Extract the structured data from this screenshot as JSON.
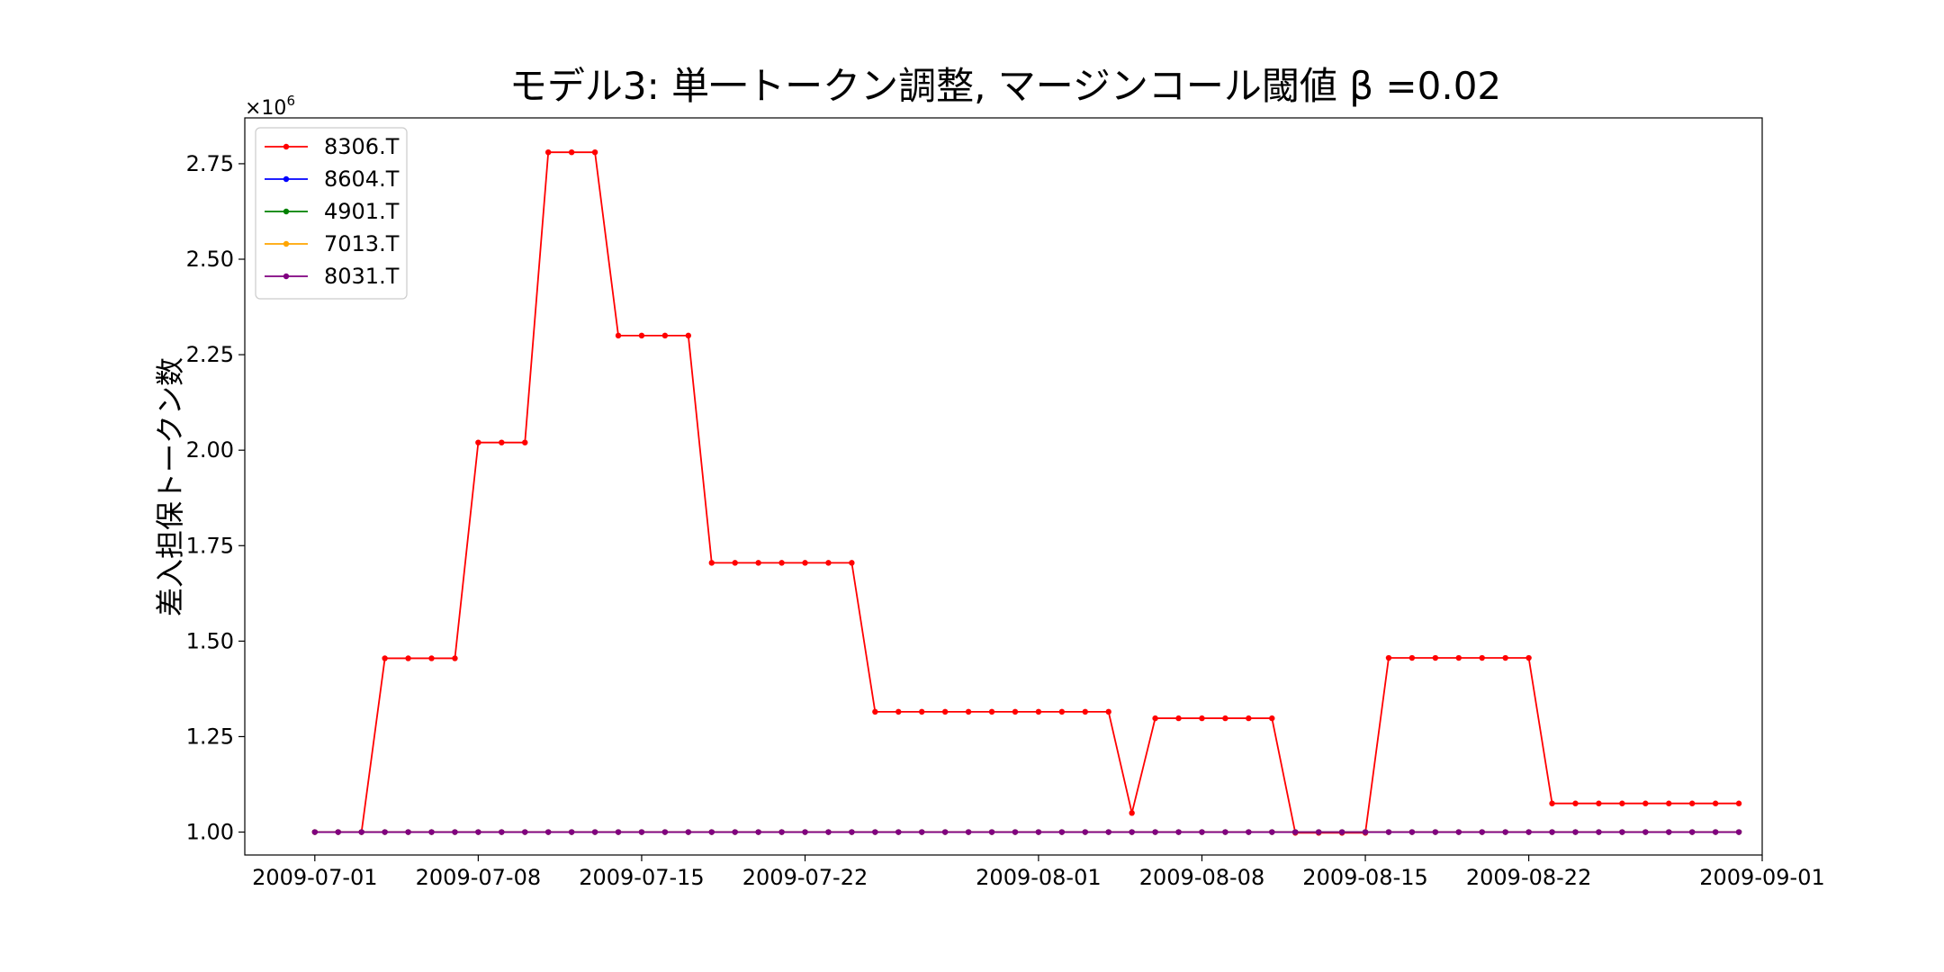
{
  "chart_data": {
    "type": "line",
    "title": "モデル3: 単一トークン調整, マージンコール閾値 β =0.02",
    "xlabel": "",
    "ylabel": "差入担保トークン数",
    "y_multiplier_base": "×10",
    "y_multiplier_exp": "6",
    "x_start_date": "2009-07-01",
    "xlim": [
      "2009-06-28",
      "2009-09-01"
    ],
    "ylim": [
      0.94,
      2.87
    ],
    "x_ticks": [
      "2009-07-01",
      "2009-07-08",
      "2009-07-15",
      "2009-07-22",
      "2009-08-01",
      "2009-08-08",
      "2009-08-15",
      "2009-08-22",
      "2009-09-01"
    ],
    "y_ticks": [
      1.0,
      1.25,
      1.5,
      1.75,
      2.0,
      2.25,
      2.5,
      2.75
    ],
    "y_tick_labels": [
      "1.00",
      "1.25",
      "1.50",
      "1.75",
      "2.00",
      "2.25",
      "2.50",
      "2.75"
    ],
    "legend_position": "upper-left",
    "grid": false,
    "series": [
      {
        "name": "8306.T",
        "color": "#ff0000",
        "values": [
          1.0,
          1.0,
          1.0,
          1.455,
          1.455,
          1.455,
          1.455,
          2.02,
          2.02,
          2.02,
          2.78,
          2.78,
          2.78,
          2.3,
          2.3,
          2.3,
          2.3,
          1.705,
          1.705,
          1.705,
          1.705,
          1.705,
          1.705,
          1.705,
          1.315,
          1.315,
          1.315,
          1.315,
          1.315,
          1.315,
          1.315,
          1.315,
          1.315,
          1.315,
          1.315,
          1.05,
          1.298,
          1.298,
          1.298,
          1.298,
          1.298,
          1.298,
          0.998,
          0.998,
          0.998,
          0.998,
          1.456,
          1.456,
          1.456,
          1.456,
          1.456,
          1.456,
          1.456,
          1.075,
          1.075,
          1.075,
          1.075,
          1.075,
          1.075,
          1.075,
          1.075,
          1.075
        ]
      },
      {
        "name": "8604.T",
        "color": "#0000ff",
        "values": [
          1.0,
          1.0,
          1.0,
          1.0,
          1.0,
          1.0,
          1.0,
          1.0,
          1.0,
          1.0,
          1.0,
          1.0,
          1.0,
          1.0,
          1.0,
          1.0,
          1.0,
          1.0,
          1.0,
          1.0,
          1.0,
          1.0,
          1.0,
          1.0,
          1.0,
          1.0,
          1.0,
          1.0,
          1.0,
          1.0,
          1.0,
          1.0,
          1.0,
          1.0,
          1.0,
          1.0,
          1.0,
          1.0,
          1.0,
          1.0,
          1.0,
          1.0,
          1.0,
          1.0,
          1.0,
          1.0,
          1.0,
          1.0,
          1.0,
          1.0,
          1.0,
          1.0,
          1.0,
          1.0,
          1.0,
          1.0,
          1.0,
          1.0,
          1.0,
          1.0,
          1.0,
          1.0
        ]
      },
      {
        "name": "4901.T",
        "color": "#008000",
        "values": [
          1.0,
          1.0,
          1.0,
          1.0,
          1.0,
          1.0,
          1.0,
          1.0,
          1.0,
          1.0,
          1.0,
          1.0,
          1.0,
          1.0,
          1.0,
          1.0,
          1.0,
          1.0,
          1.0,
          1.0,
          1.0,
          1.0,
          1.0,
          1.0,
          1.0,
          1.0,
          1.0,
          1.0,
          1.0,
          1.0,
          1.0,
          1.0,
          1.0,
          1.0,
          1.0,
          1.0,
          1.0,
          1.0,
          1.0,
          1.0,
          1.0,
          1.0,
          1.0,
          1.0,
          1.0,
          1.0,
          1.0,
          1.0,
          1.0,
          1.0,
          1.0,
          1.0,
          1.0,
          1.0,
          1.0,
          1.0,
          1.0,
          1.0,
          1.0,
          1.0,
          1.0,
          1.0
        ]
      },
      {
        "name": "7013.T",
        "color": "#ffa500",
        "values": [
          1.0,
          1.0,
          1.0,
          1.0,
          1.0,
          1.0,
          1.0,
          1.0,
          1.0,
          1.0,
          1.0,
          1.0,
          1.0,
          1.0,
          1.0,
          1.0,
          1.0,
          1.0,
          1.0,
          1.0,
          1.0,
          1.0,
          1.0,
          1.0,
          1.0,
          1.0,
          1.0,
          1.0,
          1.0,
          1.0,
          1.0,
          1.0,
          1.0,
          1.0,
          1.0,
          1.0,
          1.0,
          1.0,
          1.0,
          1.0,
          1.0,
          1.0,
          1.0,
          1.0,
          1.0,
          1.0,
          1.0,
          1.0,
          1.0,
          1.0,
          1.0,
          1.0,
          1.0,
          1.0,
          1.0,
          1.0,
          1.0,
          1.0,
          1.0,
          1.0,
          1.0,
          1.0
        ]
      },
      {
        "name": "8031.T",
        "color": "#800080",
        "values": [
          1.0,
          1.0,
          1.0,
          1.0,
          1.0,
          1.0,
          1.0,
          1.0,
          1.0,
          1.0,
          1.0,
          1.0,
          1.0,
          1.0,
          1.0,
          1.0,
          1.0,
          1.0,
          1.0,
          1.0,
          1.0,
          1.0,
          1.0,
          1.0,
          1.0,
          1.0,
          1.0,
          1.0,
          1.0,
          1.0,
          1.0,
          1.0,
          1.0,
          1.0,
          1.0,
          1.0,
          1.0,
          1.0,
          1.0,
          1.0,
          1.0,
          1.0,
          1.0,
          1.0,
          1.0,
          1.0,
          1.0,
          1.0,
          1.0,
          1.0,
          1.0,
          1.0,
          1.0,
          1.0,
          1.0,
          1.0,
          1.0,
          1.0,
          1.0,
          1.0,
          1.0,
          1.0
        ]
      }
    ]
  }
}
